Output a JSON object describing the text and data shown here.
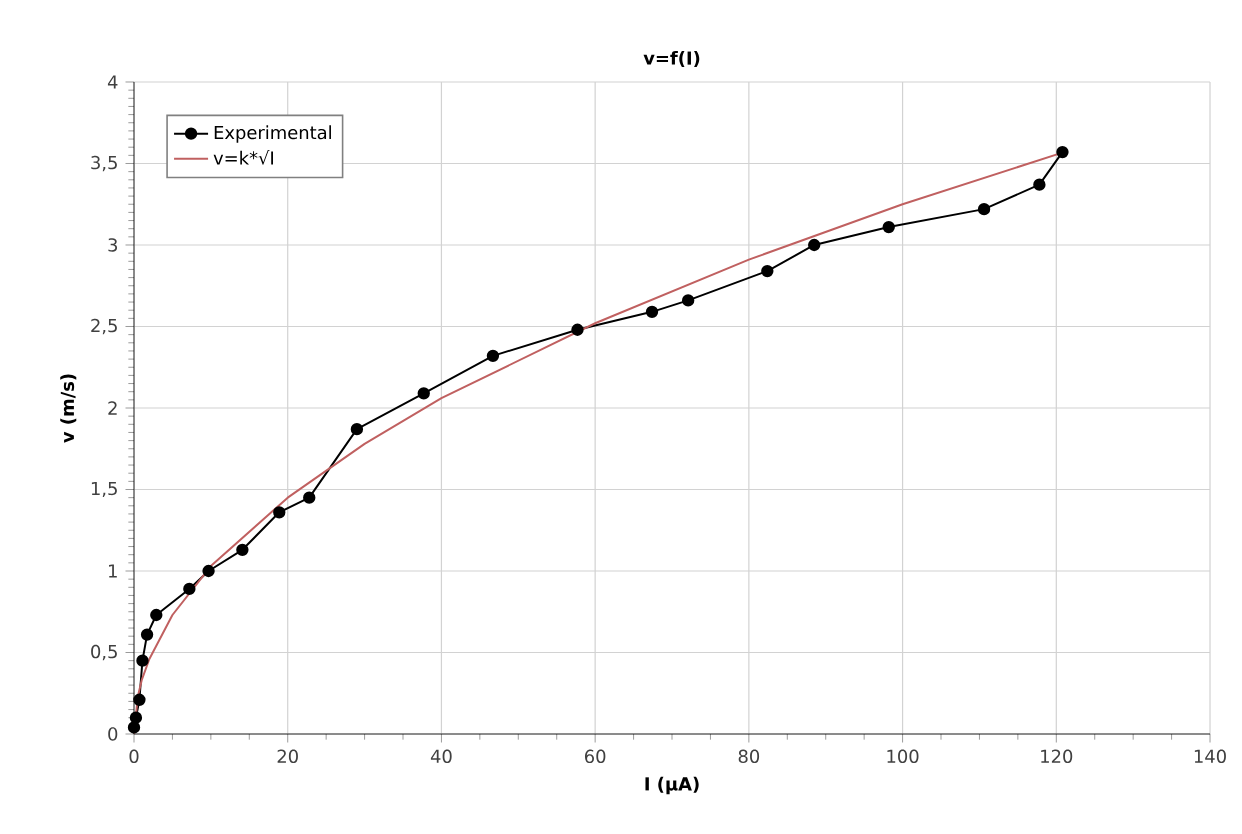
{
  "chart_data": {
    "type": "line",
    "title": "v=f(I)",
    "xlabel": "I (µA)",
    "ylabel": "v (m/s)",
    "xlim": [
      0,
      140
    ],
    "xticks": [
      0,
      20,
      40,
      60,
      80,
      100,
      120,
      140
    ],
    "ylim": [
      0,
      4
    ],
    "yticks": [
      0,
      {
        "value": 0.5,
        "label": "0,5"
      },
      1,
      {
        "value": 1.5,
        "label": "1,5"
      },
      2,
      {
        "value": 2.5,
        "label": "2,5"
      },
      3,
      {
        "value": 3.5,
        "label": "3,5"
      },
      4
    ],
    "grid": true,
    "legend": "top left",
    "series": [
      {
        "name": "Experimental",
        "color": "#000000",
        "marker": "circle",
        "x": [
          0,
          0.25,
          0.7,
          1.1,
          1.7,
          2.9,
          7.2,
          9.7,
          14.1,
          18.9,
          22.8,
          29,
          37.7,
          46.7,
          57.7,
          67.4,
          72.1,
          82.4,
          88.5,
          98.2,
          110.6,
          117.8,
          120.8
        ],
        "values": [
          0.04,
          0.1,
          0.21,
          0.45,
          0.61,
          0.73,
          0.89,
          1.0,
          1.13,
          1.36,
          1.45,
          1.87,
          2.09,
          2.32,
          2.48,
          2.59,
          2.66,
          2.84,
          3.0,
          3.11,
          3.22,
          3.37,
          3.57
        ]
      },
      {
        "name": "v=k*√I",
        "color": "#c06060",
        "marker": "none",
        "x": [
          0,
          0.5,
          1,
          2,
          5,
          10,
          20,
          30,
          40,
          60,
          80,
          100,
          121
        ],
        "values": [
          0,
          0.23,
          0.33,
          0.46,
          0.73,
          1.03,
          1.45,
          1.78,
          2.06,
          2.52,
          2.91,
          3.25,
          3.57
        ]
      }
    ]
  }
}
